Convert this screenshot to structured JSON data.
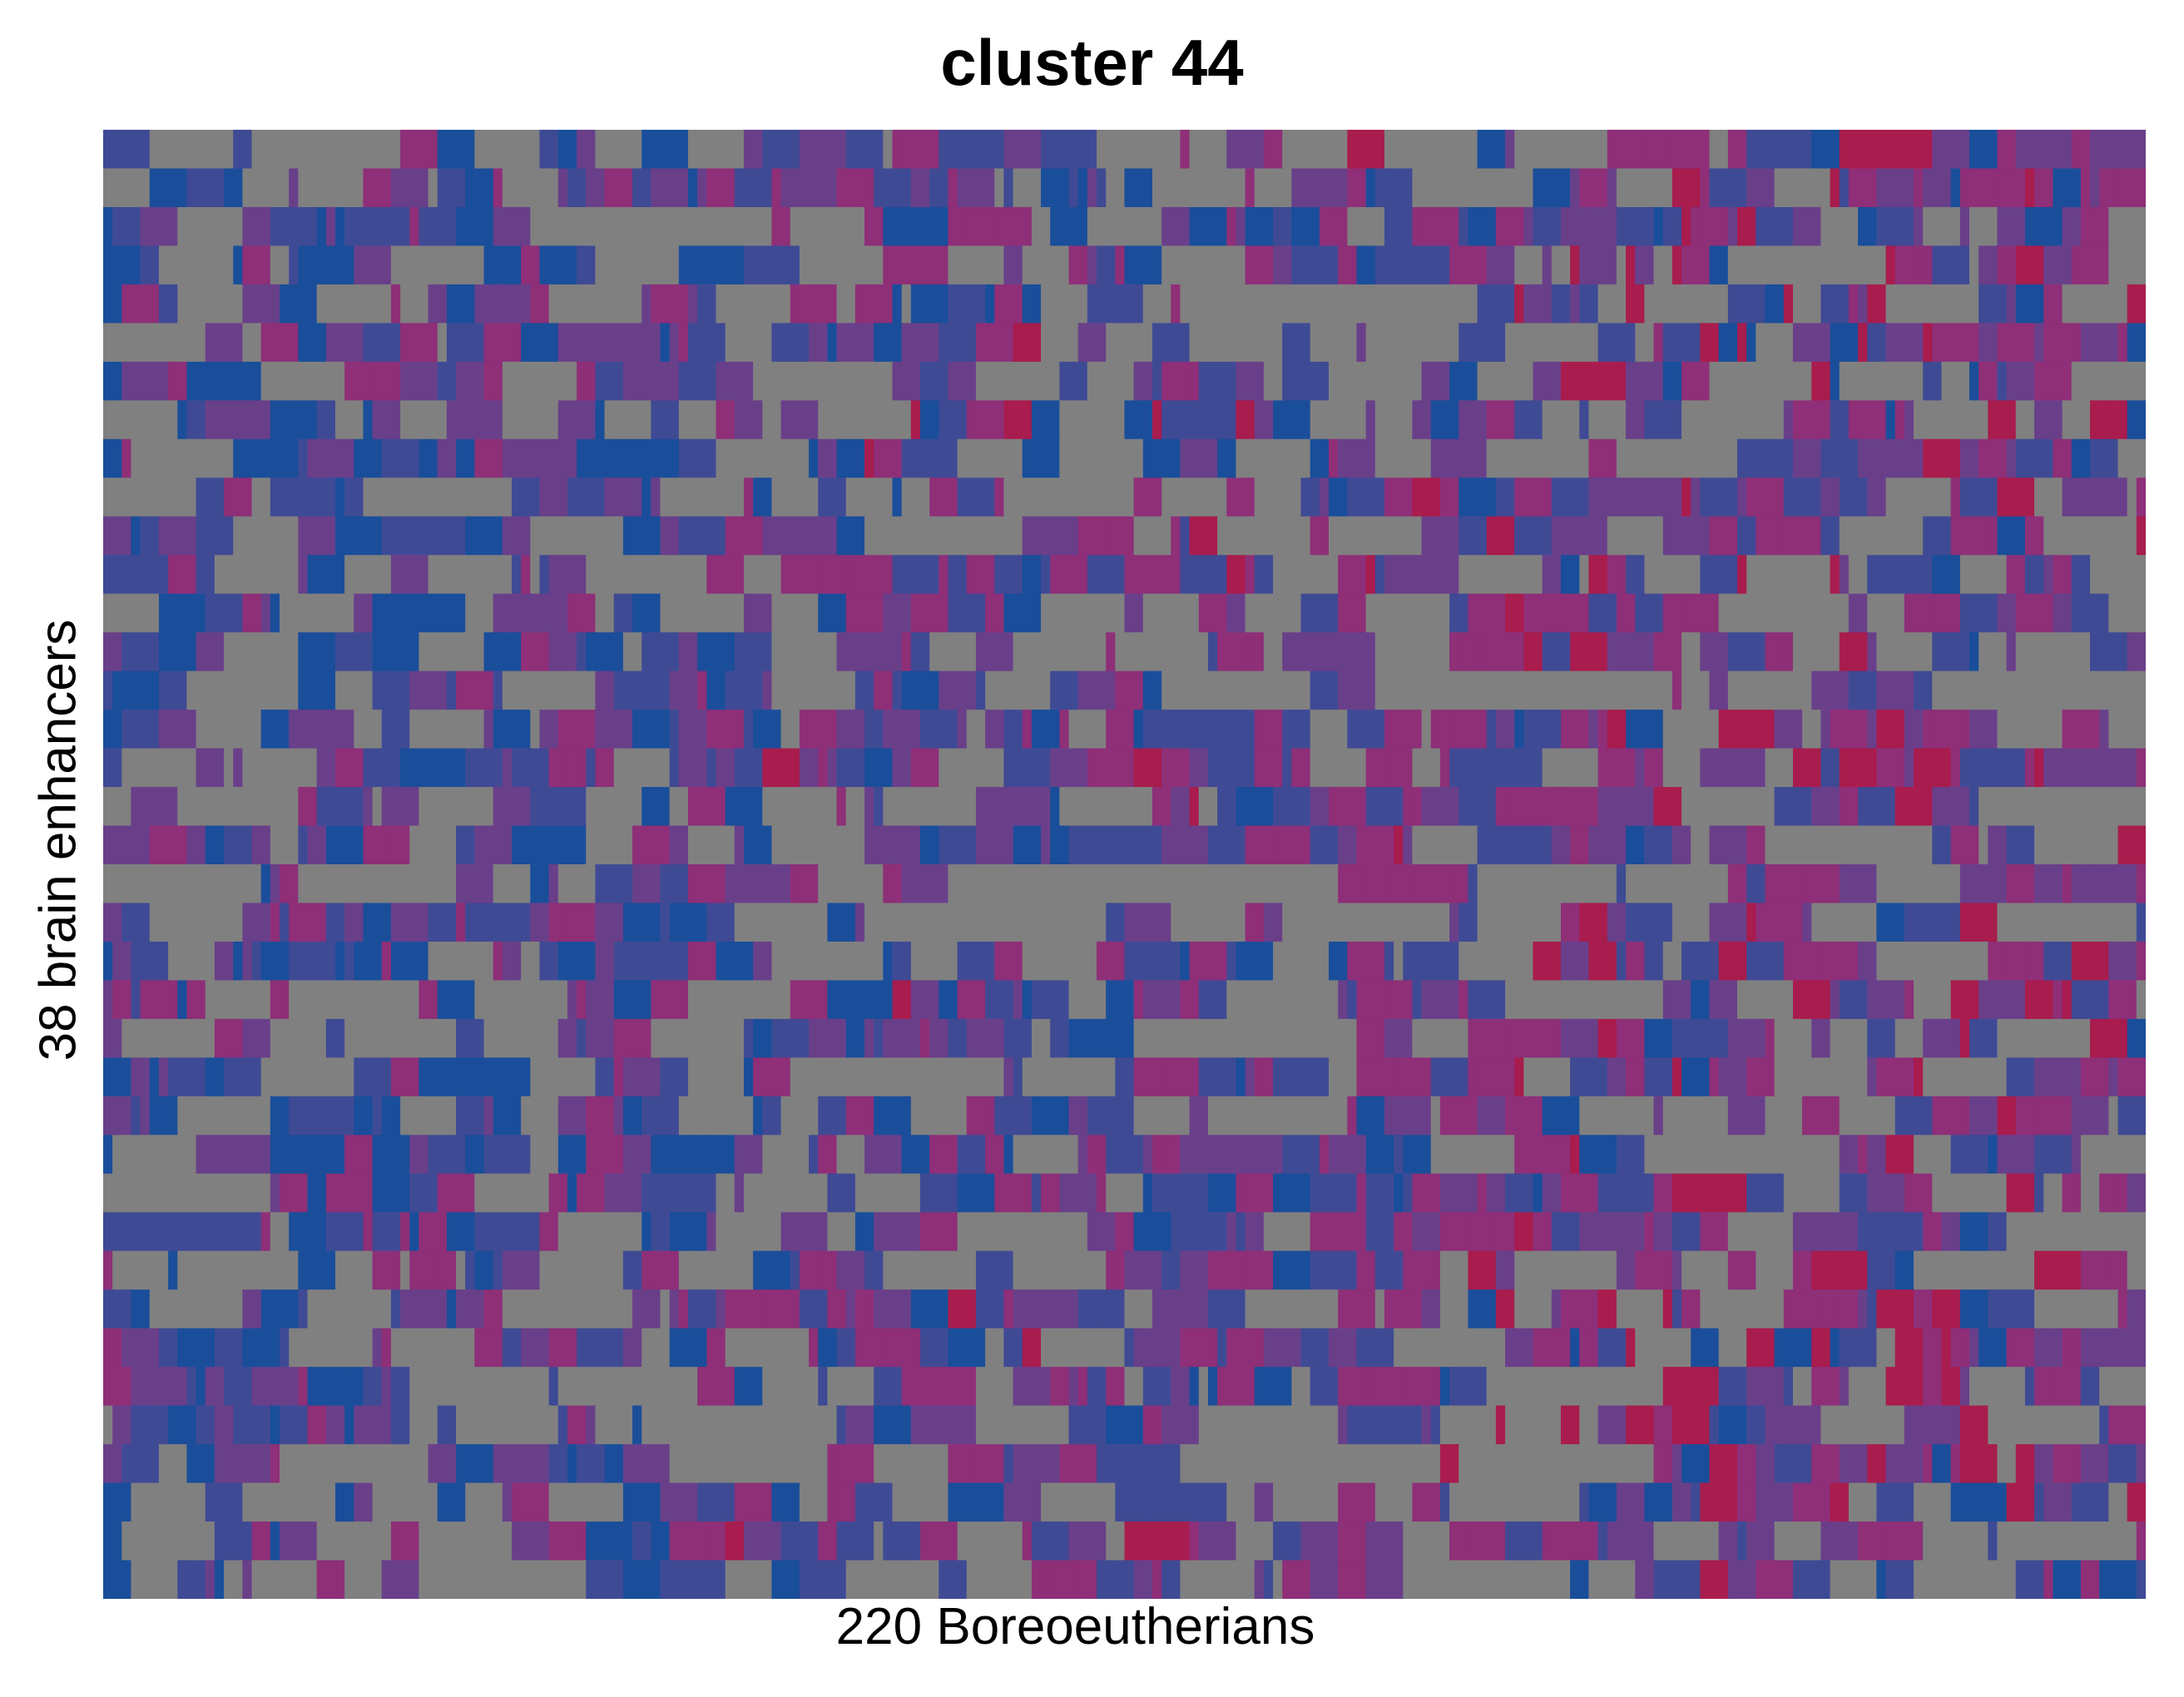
{
  "chart_data": {
    "type": "heatmap",
    "title": "cluster 44",
    "xlabel": "220 Boreoeutherians",
    "ylabel": "38 brain enhancers",
    "n_rows": 38,
    "n_cols": 220,
    "missing_color": "#808080",
    "colorscale": [
      "#1A4E9A",
      "#3F4A95",
      "#6A3F8A",
      "#8E2F78",
      "#A81C4E"
    ],
    "grid": false,
    "legend": "none"
  }
}
